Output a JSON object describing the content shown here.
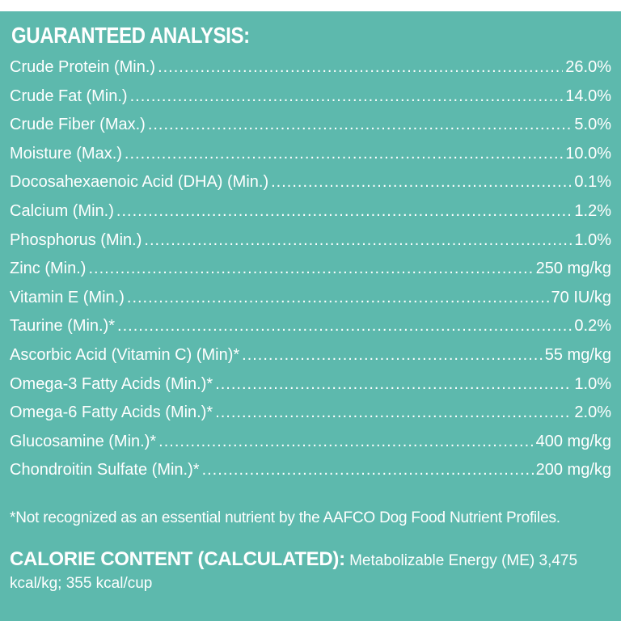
{
  "heading": "GUARANTEED ANALYSIS:",
  "rows": [
    {
      "label": "Crude Protein (Min.)",
      "value": "26.0%"
    },
    {
      "label": "Crude Fat (Min.)",
      "value": "14.0%"
    },
    {
      "label": "Crude Fiber (Max.)",
      "value": "5.0%"
    },
    {
      "label": "Moisture (Max.)",
      "value": "10.0%"
    },
    {
      "label": "Docosahexaenoic Acid (DHA) (Min.)",
      "value": "0.1%"
    },
    {
      "label": "Calcium (Min.)",
      "value": "1.2%"
    },
    {
      "label": "Phosphorus (Min.)",
      "value": "1.0%"
    },
    {
      "label": "Zinc (Min.)",
      "value": "250 mg/kg"
    },
    {
      "label": "Vitamin E (Min.)",
      "value": "70 IU/kg"
    },
    {
      "label": "Taurine (Min.)*",
      "value": "0.2%"
    },
    {
      "label": "Ascorbic Acid (Vitamin C) (Min)*",
      "value": "55 mg/kg"
    },
    {
      "label": "Omega-3 Fatty Acids (Min.)*",
      "value": "1.0%"
    },
    {
      "label": "Omega-6 Fatty Acids (Min.)*",
      "value": "2.0%"
    },
    {
      "label": "Glucosamine (Min.)*",
      "value": "400 mg/kg"
    },
    {
      "label": "Chondroitin Sulfate (Min.)*",
      "value": "200 mg/kg"
    }
  ],
  "footnote": "*Not recognized as an essential nutrient by the AAFCO Dog Food Nutrient Profiles.",
  "calorie": {
    "heading": "CALORIE CONTENT (CALCULATED):",
    "text": "Metabolizable Energy (ME) 3,475 kcal/kg; 355 kcal/cup"
  }
}
